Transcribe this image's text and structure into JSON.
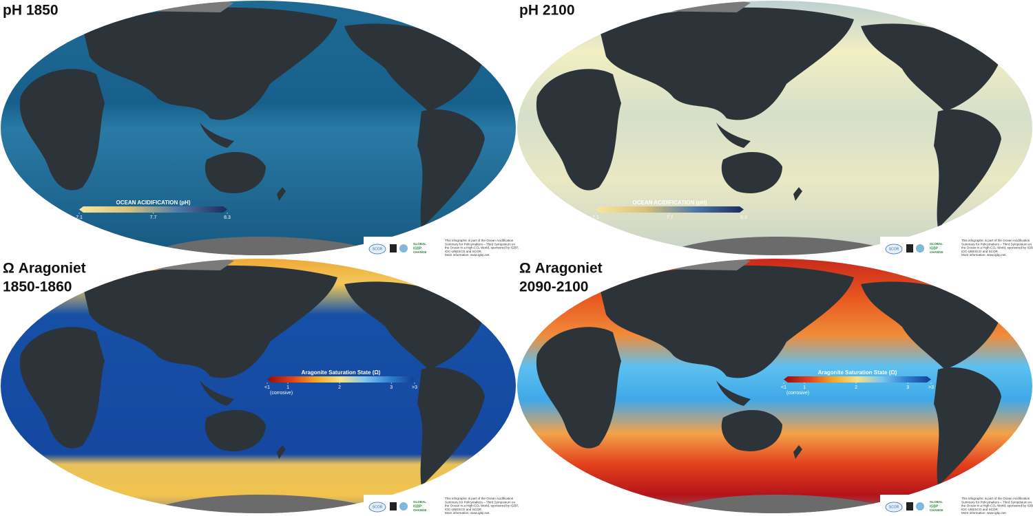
{
  "panels": [
    {
      "title": [
        "pH 1850"
      ],
      "colorbar": {
        "title": "OCEAN ACIDIFICATION (pH)",
        "lim": [
          7.1,
          8.3
        ],
        "ticks": [
          7.1,
          7.7,
          8.3
        ],
        "colors": [
          "#f7e7a0",
          "#d9c27a",
          "#4f7aa8",
          "#1b2a5c"
        ]
      }
    },
    {
      "title": [
        "pH 2100"
      ],
      "colorbar": {
        "title": "OCEAN ACIDIFICATION (pH)",
        "lim": [
          7.1,
          8.3
        ],
        "ticks": [
          7.1,
          7.7,
          8.3
        ],
        "colors": [
          "#f7e7a0",
          "#d9c27a",
          "#4f7aa8",
          "#1b2a5c"
        ]
      }
    },
    {
      "title": [
        "Ω Aragoniet",
        "1850-1860"
      ],
      "colorbar": {
        "title": "Aragonite Saturation State (Ω)",
        "lim": [
          0.6,
          3.45
        ],
        "ticks": [
          {
            "value": 0.6,
            "label": "<1"
          },
          1,
          2,
          3,
          {
            "value": 3.45,
            "label": ">3"
          }
        ],
        "note": "(corrosive)",
        "colors": [
          "#8e0e0e",
          "#e0401c",
          "#f5a623",
          "#f6e08a",
          "#7cc6ee",
          "#2f7fd0",
          "#123e94"
        ]
      }
    },
    {
      "title": [
        "Ω Aragoniet",
        "2090-2100"
      ],
      "colorbar": {
        "title": "Aragonite Saturation State (Ω)",
        "lim": [
          0.6,
          3.45
        ],
        "ticks": [
          {
            "value": 0.6,
            "label": "<1"
          },
          1,
          2,
          3,
          {
            "value": 3.45,
            "label": ">3"
          }
        ],
        "note": "(corrosive)",
        "colors": [
          "#8e0e0e",
          "#e0401c",
          "#f5a623",
          "#f6e08a",
          "#7cc6ee",
          "#2f7fd0",
          "#123e94"
        ]
      }
    }
  ],
  "footer": {
    "credit": [
      "This infographic is part of the Ocean Acidification",
      "Summary for Policymakers – Third Symposium on",
      "the Ocean in a High-CO₂ World, sponsored by IGBP,",
      "IOC-UNESCO and SCOR.",
      "More information: www.igbp.net."
    ],
    "logos": [
      "SCOR",
      "GLOBAL",
      "IGBP",
      "CHANGE"
    ]
  }
}
